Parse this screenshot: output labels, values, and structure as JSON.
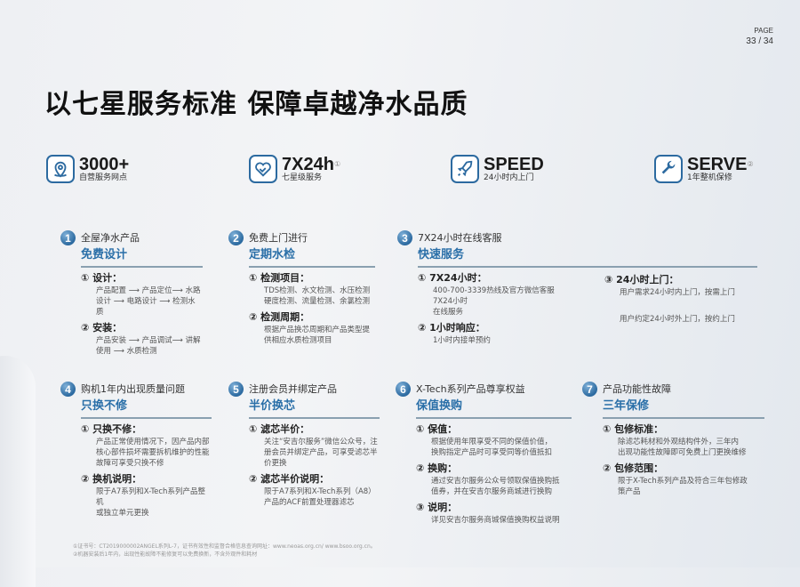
{
  "page": {
    "label": "PAGE",
    "current": "33",
    "total": "34",
    "sep": "/"
  },
  "title": "以七星服务标准  保障卓越净水品质",
  "features": [
    {
      "icon": "location-pin-icon",
      "big": "3000+",
      "small": "自营服务网点",
      "sup": ""
    },
    {
      "icon": "heart-handshake-icon",
      "big": "7X24h",
      "small": "七星级服务",
      "sup": "①"
    },
    {
      "icon": "rocket-icon",
      "big": "SPEED",
      "small": "24小时内上门",
      "sup": ""
    },
    {
      "icon": "wrench-icon",
      "big": "SERVE",
      "small": "1年整机保修",
      "sup": "②"
    }
  ],
  "sections": [
    {
      "num": "1",
      "sub": "全屋净水产品",
      "title": "免费设计",
      "items": [
        {
          "h": "① 设计：",
          "t": "产品配置 ⟶ 产品定位⟶ 水路\n设计 ⟶ 电路设计 ⟶ 检测水质"
        },
        {
          "h": "② 安装：",
          "t": "产品安装 ⟶ 产品调试⟶ 讲解\n使用 ⟶ 水质检测"
        }
      ]
    },
    {
      "num": "2",
      "sub": "免费上门进行",
      "title": "定期水检",
      "items": [
        {
          "h": "① 检测项目：",
          "t": "TDS检测、水文检测、水压检测\n硬度检测、流量检测、余氯检测"
        },
        {
          "h": "② 检测周期：",
          "t": "根据产品换芯周期和产品类型提\n供相应水质检测项目"
        }
      ]
    },
    {
      "num": "3",
      "sub": "7X24小时在线客服",
      "title": "快速服务",
      "items": [
        {
          "h": "① 7X24小时：",
          "t": "400-700-3339热线及官方微信客服7X24小时\n在线服务"
        },
        {
          "h": "② 1小时响应：",
          "t": "1小时内接单预约"
        }
      ],
      "items_right": [
        {
          "h": "③ 24小时上门：",
          "t": "用户需求24小时内上门，按需上门"
        },
        {
          "h": "",
          "t": "用户约定24小时外上门，按约上门"
        }
      ]
    },
    {
      "num": "4",
      "sub": "购机1年内出现质量问题",
      "title": "只换不修",
      "items": [
        {
          "h": "① 只换不修：",
          "t": "产品正常使用情况下，因产品内部\n核心部件损坏需要拆机维护的性能\n故障可享受只换不修"
        },
        {
          "h": "② 换机说明：",
          "t": "限于A7系列和X-Tech系列产品整机\n或独立单元更换"
        }
      ]
    },
    {
      "num": "5",
      "sub": "注册会员并绑定产品",
      "title": "半价换芯",
      "items": [
        {
          "h": "① 滤芯半价：",
          "t": "关注“安吉尔服务”微信公众号，注\n册会员并绑定产品，可享受滤芯半\n价更换"
        },
        {
          "h": "② 滤芯半价说明：",
          "t": "限于A7系列和X-Tech系列（A8）\n产品的ACF前置处理器滤芯"
        }
      ]
    },
    {
      "num": "6",
      "sub": "X-Tech系列产品尊享权益",
      "title": "保值换购",
      "items": [
        {
          "h": "① 保值：",
          "t": "根据使用年限享受不同的保值价值，\n换购指定产品时可享受同等价值抵扣"
        },
        {
          "h": "② 换购：",
          "t": "通过安吉尔服务公众号领取保值换购抵\n值券，并在安吉尔服务商城进行换购"
        },
        {
          "h": "③ 说明：",
          "t": "详见安吉尔服务商城保值换购权益说明"
        }
      ]
    },
    {
      "num": "7",
      "sub": "产品功能性故障",
      "title": "三年保修",
      "items": [
        {
          "h": "① 包修标准：",
          "t": "除滤芯耗材和外观结构件外，三年内\n出现功能性故障即可免费上门更换维修"
        },
        {
          "h": "② 包修范围：",
          "t": "限于X-Tech系列产品及符合三年包修政\n策产品"
        }
      ]
    }
  ],
  "footnotes": [
    "①证书号：CT2019000002ANGEL系列L-7，证书有效性和监督合格信息查询网址：www.neoas.org.cn/ www.bsoo.org.cn。",
    "②机器安装后1年内，出现性能故障不能修复可以免费换新，不含外观件和耗材"
  ],
  "colors": {
    "accent": "#2a6fa8",
    "rule": "#8aa0b0"
  }
}
